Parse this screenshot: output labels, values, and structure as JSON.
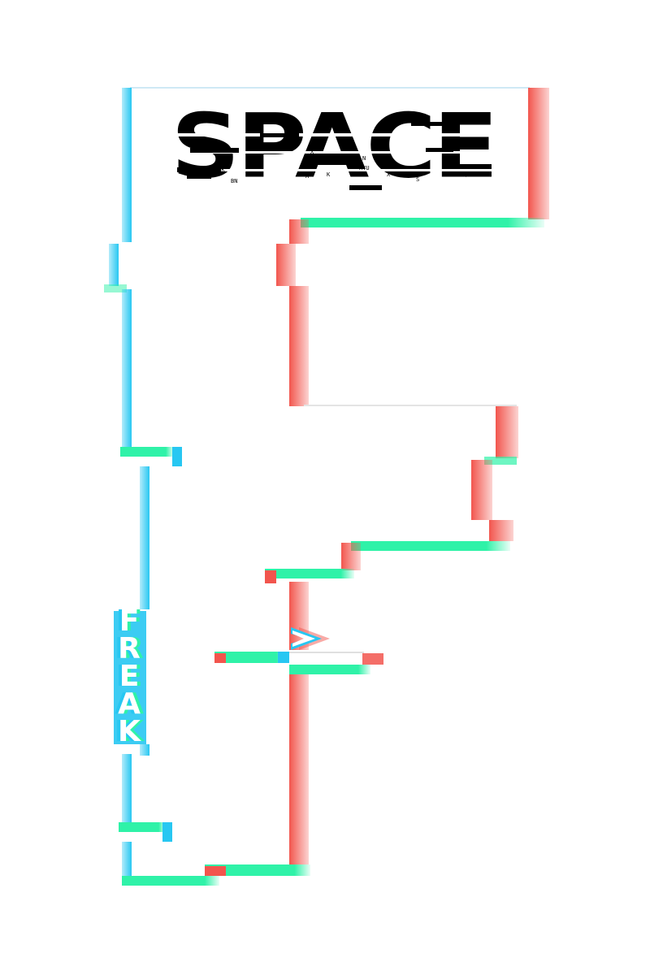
{
  "title": "SPACE",
  "vertical_word": "FREAK",
  "micro_text": [
    "Y",
    "X",
    "K",
    "N",
    "A",
    "K",
    "X",
    "S",
    "KRQ",
    "EVK",
    "BN",
    "RYU"
  ],
  "icons": {
    "arrow": "chevron-right-icon"
  },
  "colors": {
    "background": "#ffffff",
    "ink": "#000000",
    "left_edge": "#27c7f2",
    "right_edge": "#f2554d",
    "bottom_edge": "#2ff2a8"
  }
}
